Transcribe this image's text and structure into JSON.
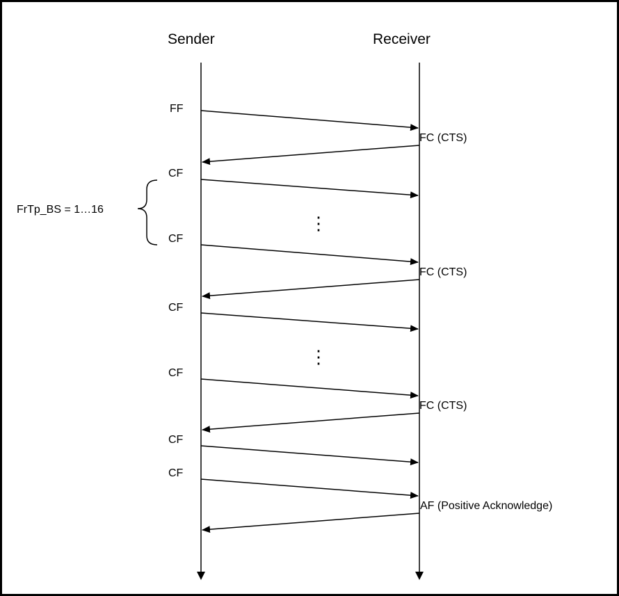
{
  "participants": {
    "sender": "Sender",
    "receiver": "Receiver"
  },
  "messages": [
    {
      "label": "FF",
      "dir": "to-receiver"
    },
    {
      "label": "FC (CTS)",
      "dir": "to-sender"
    },
    {
      "label": "CF",
      "dir": "to-receiver"
    },
    {
      "label": "CF",
      "dir": "to-receiver"
    },
    {
      "label": "FC (CTS)",
      "dir": "to-sender"
    },
    {
      "label": "CF",
      "dir": "to-receiver"
    },
    {
      "label": "CF",
      "dir": "to-receiver"
    },
    {
      "label": "FC (CTS)",
      "dir": "to-sender"
    },
    {
      "label": "CF",
      "dir": "to-receiver"
    },
    {
      "label": "CF",
      "dir": "to-receiver"
    },
    {
      "label": "AF (Positive Acknowledge)",
      "dir": "to-sender"
    }
  ],
  "block_size_note": "FrTp_BS = 1…16",
  "ellipsis_symbol": "⋮"
}
